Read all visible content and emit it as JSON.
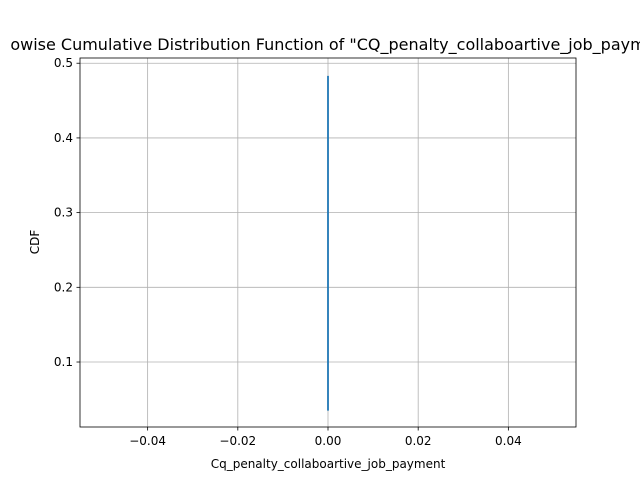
{
  "chart_data": {
    "type": "line",
    "title": "owise Cumulative Distribution Function of \"CQ_penalty_collaboartive_job_paym",
    "xlabel": "Cq_penalty_collaboartive_job_payment",
    "ylabel": "CDF",
    "xlim": [
      -0.055,
      0.055
    ],
    "ylim": [
      0.013,
      0.507
    ],
    "grid": true,
    "x_ticks": [
      -0.04,
      -0.02,
      0.0,
      0.02,
      0.04
    ],
    "x_tick_labels": [
      "−0.04",
      "−0.02",
      "0.00",
      "0.02",
      "0.04"
    ],
    "y_ticks": [
      0.1,
      0.2,
      0.3,
      0.4,
      0.5
    ],
    "y_tick_labels": [
      "0.1",
      "0.2",
      "0.3",
      "0.4",
      "0.5"
    ],
    "series": [
      {
        "color": "#1f77b4",
        "x": [
          0.0,
          0.0
        ],
        "y": [
          0.035,
          0.483
        ]
      }
    ]
  }
}
